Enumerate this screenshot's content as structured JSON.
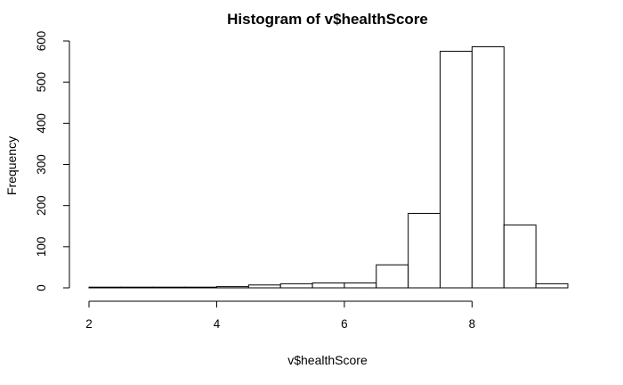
{
  "chart_data": {
    "type": "bar",
    "title": "Histogram of v$healthScore",
    "xlabel": "v$healthScore",
    "ylabel": "Frequency",
    "xlim": [
      2,
      9.5
    ],
    "ylim": [
      0,
      600
    ],
    "x_ticks": [
      2,
      4,
      6,
      8
    ],
    "y_ticks": [
      0,
      100,
      200,
      300,
      400,
      500,
      600
    ],
    "bins": [
      {
        "start": 2.0,
        "end": 2.5,
        "count": 1
      },
      {
        "start": 2.5,
        "end": 3.0,
        "count": 1
      },
      {
        "start": 3.0,
        "end": 3.5,
        "count": 1
      },
      {
        "start": 3.5,
        "end": 4.0,
        "count": 1
      },
      {
        "start": 4.0,
        "end": 4.5,
        "count": 3
      },
      {
        "start": 4.5,
        "end": 5.0,
        "count": 7
      },
      {
        "start": 5.0,
        "end": 5.5,
        "count": 10
      },
      {
        "start": 5.5,
        "end": 6.0,
        "count": 12
      },
      {
        "start": 6.0,
        "end": 6.5,
        "count": 12
      },
      {
        "start": 6.5,
        "end": 7.0,
        "count": 56
      },
      {
        "start": 7.0,
        "end": 7.5,
        "count": 181
      },
      {
        "start": 7.5,
        "end": 8.0,
        "count": 575
      },
      {
        "start": 8.0,
        "end": 8.5,
        "count": 586
      },
      {
        "start": 8.5,
        "end": 9.0,
        "count": 153
      },
      {
        "start": 9.0,
        "end": 9.5,
        "count": 10
      }
    ],
    "fill_color": "#ffffff",
    "stroke_color": "#000000",
    "grid": false,
    "legend": "none"
  }
}
